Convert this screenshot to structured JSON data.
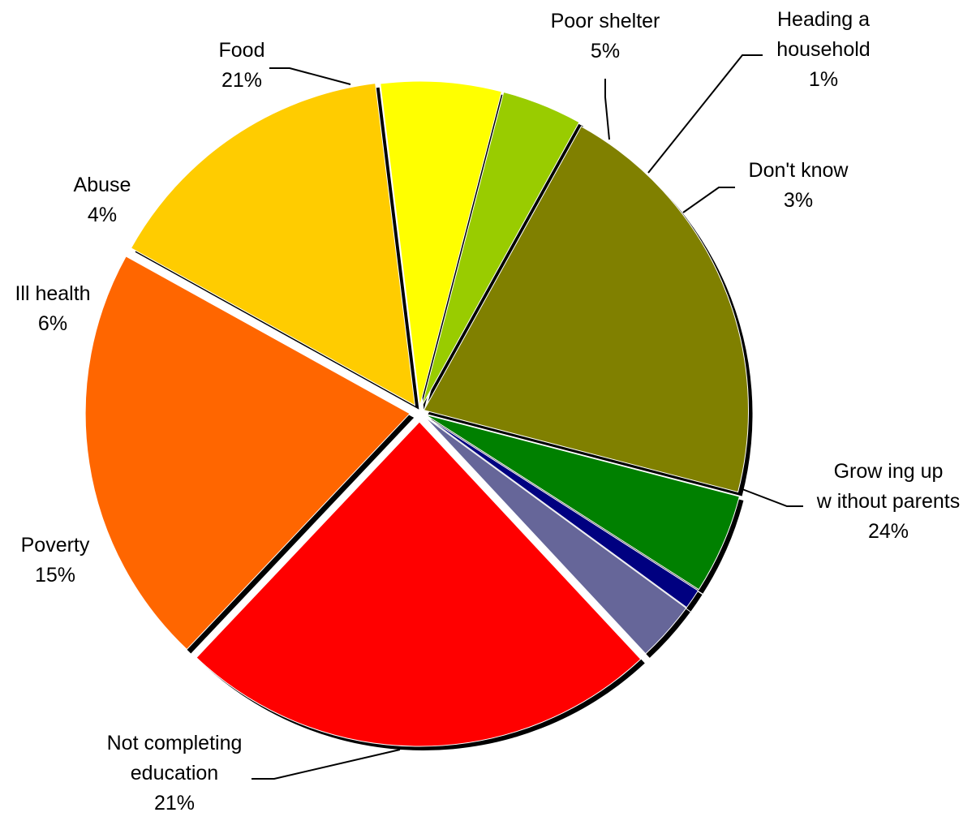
{
  "chart_data": {
    "type": "pie",
    "title": "",
    "slices": [
      {
        "label_lines": [
          "Food"
        ],
        "value": 21,
        "value_label": "21%",
        "color": "#808000"
      },
      {
        "label_lines": [
          "Poor shelter"
        ],
        "value": 5,
        "value_label": "5%",
        "color": "#008000"
      },
      {
        "label_lines": [
          "Heading a",
          "household"
        ],
        "value": 1,
        "value_label": "1%",
        "color": "#000080"
      },
      {
        "label_lines": [
          "Don't know"
        ],
        "value": 3,
        "value_label": "3%",
        "color": "#666699"
      },
      {
        "label_lines": [
          "Grow ing up",
          "w ithout parents"
        ],
        "value": 24,
        "value_label": "24%",
        "color": "#ff0000"
      },
      {
        "label_lines": [
          "Not completing",
          "education"
        ],
        "value": 21,
        "value_label": "21%",
        "color": "#ff6600"
      },
      {
        "label_lines": [
          "Poverty"
        ],
        "value": 15,
        "value_label": "15%",
        "color": "#ffcc00"
      },
      {
        "label_lines": [
          "Ill health"
        ],
        "value": 6,
        "value_label": "6%",
        "color": "#ffff00"
      },
      {
        "label_lines": [
          "Abuse"
        ],
        "value": 4,
        "value_label": "4%",
        "color": "#99cc00"
      }
    ],
    "legend": "none",
    "labels": "outside with leader lines"
  }
}
